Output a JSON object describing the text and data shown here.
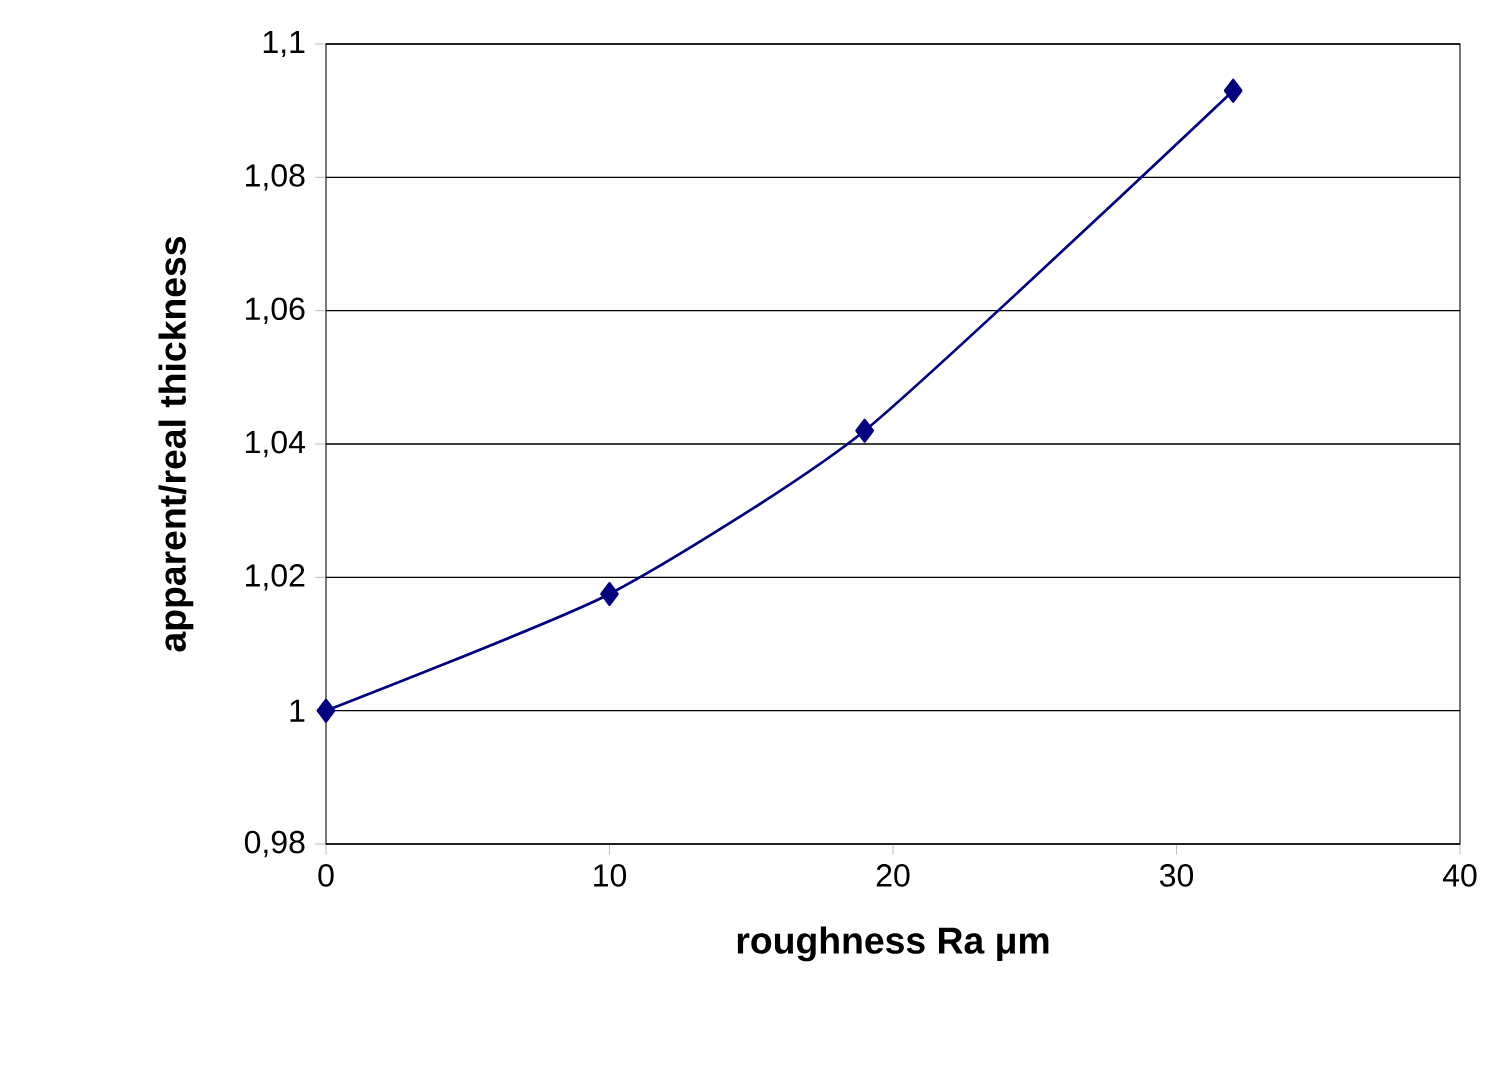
{
  "chart_data": {
    "type": "line",
    "xlabel": "roughness Ra μm",
    "ylabel": "apparent/real thickness",
    "x": [
      0,
      10,
      19,
      32
    ],
    "series": [
      {
        "color": "#000080",
        "values": [
          1.0,
          1.0175,
          1.042,
          1.093
        ]
      }
    ],
    "xlim": [
      0,
      40
    ],
    "xticks": [
      0,
      10,
      20,
      30,
      40
    ],
    "ylim": [
      0.98,
      1.1
    ],
    "yticks": [
      {
        "value": 0.98,
        "label": "0,98"
      },
      1,
      {
        "value": 1.02,
        "label": "1,02"
      },
      {
        "value": 1.04,
        "label": "1,04"
      },
      {
        "value": 1.06,
        "label": "1,06"
      },
      {
        "value": 1.08,
        "label": "1,08"
      },
      {
        "value": 1.1,
        "label": "1,1"
      }
    ],
    "grid": "y",
    "marker": "diamond",
    "line_style": "solid"
  }
}
